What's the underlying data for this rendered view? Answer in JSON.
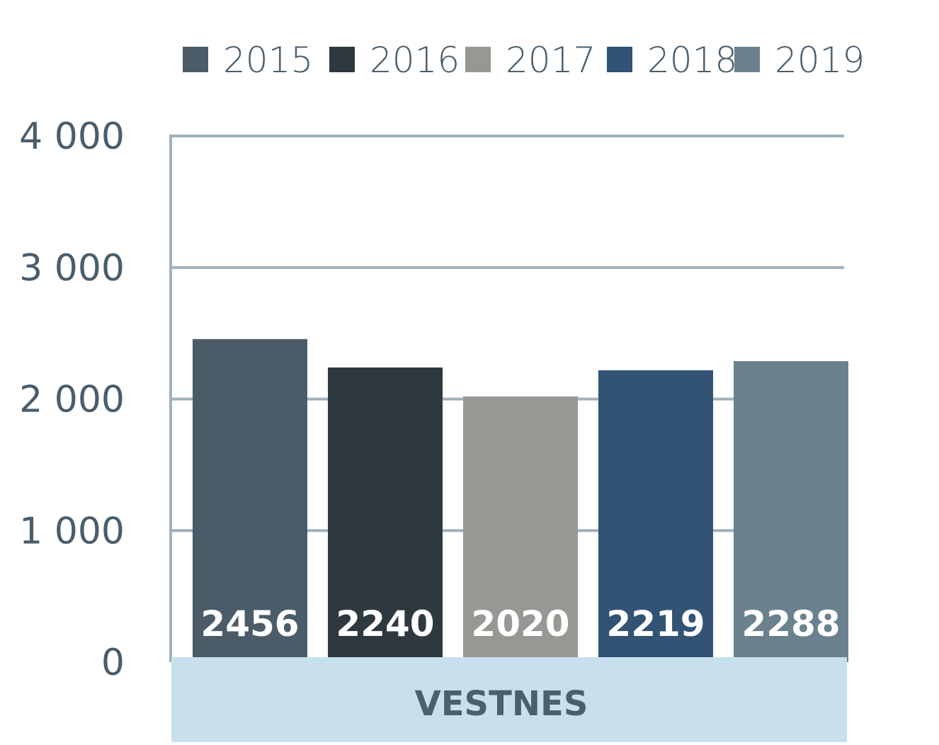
{
  "chart_data": {
    "type": "bar",
    "categories": [
      "VESTNES"
    ],
    "series": [
      {
        "name": "2015",
        "values": [
          2456
        ],
        "color": "#4b5c68"
      },
      {
        "name": "2016",
        "values": [
          2240
        ],
        "color": "#2e393f"
      },
      {
        "name": "2017",
        "values": [
          2020
        ],
        "color": "#989793"
      },
      {
        "name": "2018",
        "values": [
          2219
        ],
        "color": "#325374"
      },
      {
        "name": "2019",
        "values": [
          2288
        ],
        "color": "#6b828e"
      }
    ],
    "y_ticks": [
      "0",
      "1 000",
      "2 000",
      "3 000",
      "4 000"
    ],
    "ylim": [
      0,
      4000
    ],
    "grid": true,
    "legend_position": "top",
    "category_band_color": "#c8dfed",
    "grid_color": "#a0b1bc"
  }
}
